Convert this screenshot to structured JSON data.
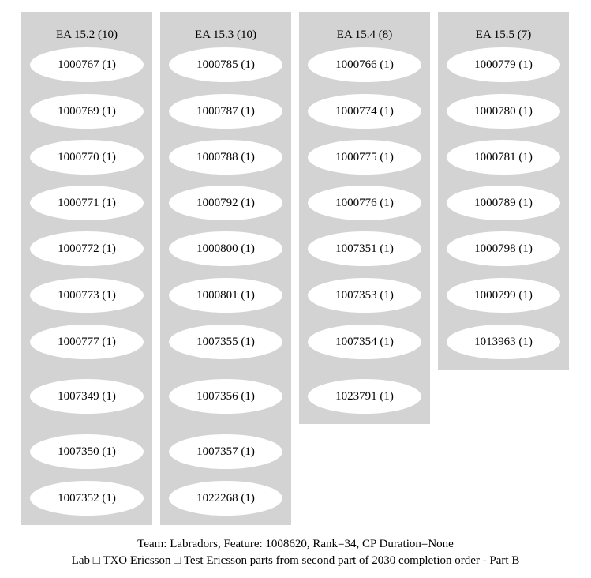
{
  "clusters": [
    {
      "title": "EA 15.2 (10)",
      "nodes": [
        "1000767 (1)",
        "1000769 (1)",
        "1000770 (1)",
        "1000771 (1)",
        "1000772 (1)",
        "1000773 (1)",
        "1000777 (1)",
        "1007349 (1)",
        "1007350 (1)",
        "1007352 (1)"
      ]
    },
    {
      "title": "EA 15.3 (10)",
      "nodes": [
        "1000785 (1)",
        "1000787 (1)",
        "1000788 (1)",
        "1000792 (1)",
        "1000800 (1)",
        "1000801 (1)",
        "1007355 (1)",
        "1007356 (1)",
        "1007357 (1)",
        "1022268 (1)"
      ]
    },
    {
      "title": "EA 15.4 (8)",
      "nodes": [
        "1000766 (1)",
        "1000774 (1)",
        "1000775 (1)",
        "1000776 (1)",
        "1007351 (1)",
        "1007353 (1)",
        "1007354 (1)",
        "1023791 (1)"
      ]
    },
    {
      "title": "EA 15.5 (7)",
      "nodes": [
        "1000779 (1)",
        "1000780 (1)",
        "1000781 (1)",
        "1000789 (1)",
        "1000798 (1)",
        "1000799 (1)",
        "1013963 (1)"
      ]
    }
  ],
  "caption": {
    "line1": "Team: Labradors, Feature: 1008620, Rank=34, CP Duration=None",
    "line2": "Lab □ TXO Ericsson □ Test Ericsson parts from second part of 2030 completion order - Part B"
  },
  "colors": {
    "cluster_fill": "#d3d3d3",
    "node_fill": "#ffffff",
    "text": "#000000",
    "background": "#ffffff"
  }
}
